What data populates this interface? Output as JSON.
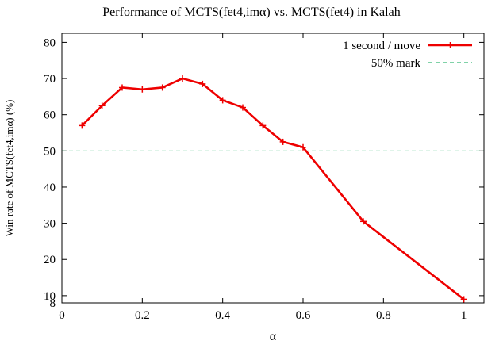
{
  "chart_data": {
    "type": "line",
    "title": "Performance of MCTS(fet4,imα) vs. MCTS(fet4) in Kalah",
    "xlabel": "α",
    "ylabel": "Win rate of MCTS(fet4,imα) (%)",
    "xlim": [
      0,
      1.05
    ],
    "ylim": [
      8,
      82.5
    ],
    "xticks": [
      0,
      0.2,
      0.4,
      0.6,
      0.8,
      1
    ],
    "yticks": [
      8,
      10,
      20,
      30,
      40,
      50,
      60,
      70,
      80
    ],
    "grid": false,
    "legend_position": "top-right",
    "series": [
      {
        "name": "1 second / move",
        "color": "#ee0000",
        "marker": "plus",
        "x": [
          0.05,
          0.1,
          0.15,
          0.2,
          0.25,
          0.3,
          0.35,
          0.4,
          0.45,
          0.5,
          0.55,
          0.6,
          0.75,
          1.0
        ],
        "y": [
          57,
          62.5,
          67.5,
          67,
          67.5,
          70,
          68.5,
          64,
          62,
          57,
          52.5,
          51,
          30.5,
          9
        ]
      }
    ],
    "reference_lines": [
      {
        "name": "50% mark",
        "value": 50,
        "color": "#00a550",
        "style": "dashed"
      }
    ]
  }
}
